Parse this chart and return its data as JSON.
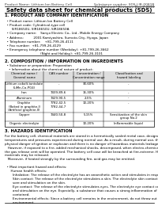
{
  "background": "#ffffff",
  "header_left": "Product Name: Lithium Ion Battery Cell",
  "header_right_line1": "Substance number: SDS-LIB-0081B",
  "header_right_line2": "Established / Revision: Dec.7.2010",
  "title": "Safety data sheet for chemical products (SDS)",
  "section1_title": "1. PRODUCT AND COMPANY IDENTIFICATION",
  "section1_lines": [
    "  • Product name: Lithium Ion Battery Cell",
    "  • Product code: Cylindrical-type cell",
    "       SIR18650U, SIR18650U, SIR18650A",
    "  • Company name:    Sanyo Electric Co., Ltd., Mobile Energy Company",
    "  • Address:          2001 Kamiyashiro, Sumoto-City, Hyogo, Japan",
    "  • Telephone number:    +81-799-26-4111",
    "  • Fax number:  +81-799-26-4129",
    "  • Emergency telephone number (Weekday): +81-799-26-3662",
    "                                    (Night and Holiday): +81-799-26-3101"
  ],
  "section2_title": "2. COMPOSITION / INFORMATION ON INGREDIENTS",
  "section2_sub": "  • Substance or preparation: Preparation",
  "section2_sub2": "    • Information about the chemical nature of product:",
  "table_headers": [
    "Chemical name /\nGeneral name",
    "CAS number",
    "Concentration /\nConcentration range",
    "Classification and\nhazard labeling"
  ],
  "table_rows": [
    [
      "Lithium cobalt-tantalate\n(LiMn-Co-PO4)",
      "-",
      "30-60%",
      "-"
    ],
    [
      "Iron",
      "7439-89-6",
      "15-30%",
      "-"
    ],
    [
      "Aluminum",
      "7429-90-5",
      "2-5%",
      "-"
    ],
    [
      "Graphite\n(Baked in graphite-I)\n(Artificial graphite-II)",
      "7782-42-5\n7782-44-7",
      "10-20%",
      "-"
    ],
    [
      "Copper",
      "7440-50-8",
      "5-15%",
      "Sensitization of the skin\ngroup No.2"
    ],
    [
      "Organic electrolyte",
      "-",
      "10-20%",
      "Inflammable liquid"
    ]
  ],
  "section3_title": "3. HAZARDS IDENTIFICATION",
  "section3_body": [
    "For the battery cell, chemical materials are stored in a hermetically sealed metal case, designed to withstand",
    "temperatures and pressures experienced during normal use. As a result, during normal use, there is no",
    "physical danger of ignition or explosion and there is no danger of hazardous materials leakage.",
    "   However, if exposed to a fire, added mechanical shocks, decomposed, when electro-chemical reaction occurs,",
    "the gas release vent will be operated. The battery cell case will be breached at fire-extreme. Hazardous",
    "materials may be released.",
    "   Moreover, if heated strongly by the surrounding fire, acid gas may be emitted.",
    "",
    "  • Most important hazard and effects:",
    "      Human health effects:",
    "        Inhalation: The release of the electrolyte has an anaesthetic action and stimulates in respiratory tract.",
    "        Skin contact: The release of the electrolyte stimulates a skin. The electrolyte skin contact causes a",
    "        sore and stimulation on the skin.",
    "        Eye contact: The release of the electrolyte stimulates eyes. The electrolyte eye contact causes a sore",
    "        and stimulation on the eye. Especially, a substance that causes a strong inflammation of the eye is",
    "        contained.",
    "        Environmental effects: Since a battery cell remains in the environment, do not throw out it into the",
    "        environment.",
    "",
    "  • Specific hazards:",
    "      If the electrolyte contacts with water, it will generate detrimental hydrogen fluoride.",
    "      Since the used electrolyte is inflammable liquid, do not bring close to fire."
  ],
  "lm": 0.03,
  "rm": 0.975,
  "fs_tiny": 3.2,
  "fs_small": 3.6,
  "fs_title": 5.0,
  "fs_section": 3.8,
  "fs_body": 3.0,
  "fs_table": 2.8
}
